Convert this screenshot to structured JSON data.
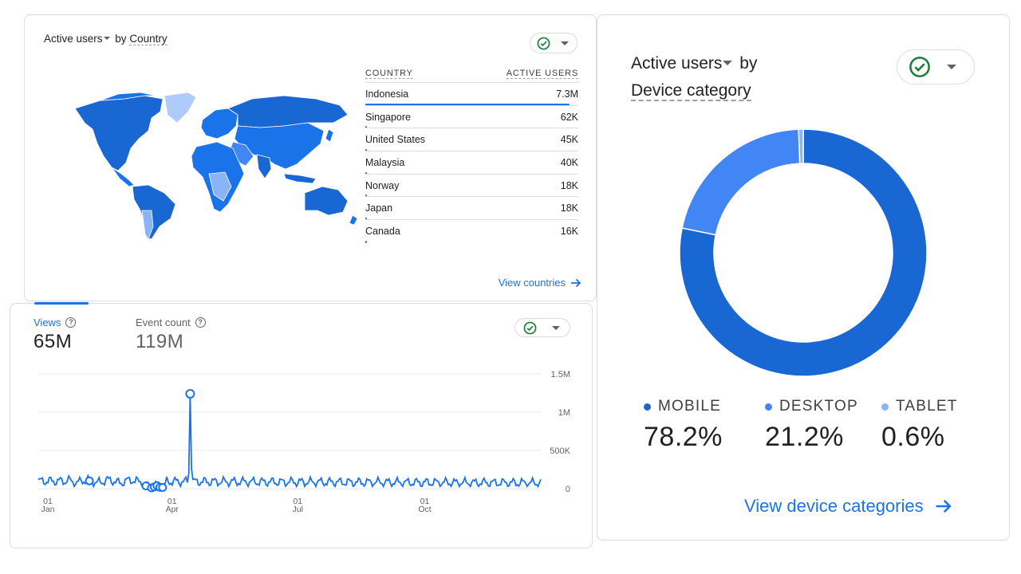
{
  "country_card": {
    "metric_label": "Active users",
    "by_text": "by",
    "dimension_label": "Country",
    "table_headers": [
      "COUNTRY",
      "ACTIVE USERS"
    ],
    "rows": [
      {
        "country": "Indonesia",
        "value": "7.3M",
        "share": 1.0
      },
      {
        "country": "Singapore",
        "value": "62K",
        "share": 0.008
      },
      {
        "country": "United States",
        "value": "45K",
        "share": 0.006
      },
      {
        "country": "Malaysia",
        "value": "40K",
        "share": 0.005
      },
      {
        "country": "Norway",
        "value": "18K",
        "share": 0.002
      },
      {
        "country": "Japan",
        "value": "18K",
        "share": 0.002
      },
      {
        "country": "Canada",
        "value": "16K",
        "share": 0.002
      }
    ],
    "view_link": "View countries",
    "map_colors": {
      "high": "#1a73e8",
      "mid": "#1967d2",
      "low": "#aecbfa",
      "border": "#ffffff"
    }
  },
  "device_card": {
    "metric_label": "Active users",
    "by_text": "by",
    "dimension_label": "Device category",
    "legend": [
      {
        "label": "MOBILE",
        "value": "78.2%",
        "color": "#1967d2"
      },
      {
        "label": "DESKTOP",
        "value": "21.2%",
        "color": "#4285f4"
      },
      {
        "label": "TABLET",
        "value": "0.6%",
        "color": "#8ab4f8"
      }
    ],
    "view_link": "View device categories"
  },
  "views_card": {
    "metrics": [
      {
        "label": "Views",
        "value": "65M",
        "active": true
      },
      {
        "label": "Event count",
        "value": "119M",
        "active": false
      }
    ]
  },
  "icons": {
    "compare": "check-circle-icon",
    "dropdown": "caret-down-icon",
    "link_arrow": "arrow-right-icon",
    "help": "help-circle-icon"
  },
  "colors": {
    "accent": "#1a73e8",
    "check_green": "#188038"
  },
  "chart_data": [
    {
      "type": "pie",
      "variant": "donut",
      "categories": [
        "MOBILE",
        "DESKTOP",
        "TABLET"
      ],
      "values": [
        78.2,
        21.2,
        0.6
      ]
    },
    {
      "type": "line",
      "series": [
        {
          "name": "Views",
          "values_description_note": null
        }
      ],
      "x_tick_labels": [
        [
          "01",
          "Jan"
        ],
        [
          "01",
          "Apr"
        ],
        [
          "01",
          "Jul"
        ],
        [
          "01",
          "Oct"
        ]
      ],
      "y_tick_labels": [
        "1.5M",
        "1M",
        "500K",
        "0"
      ],
      "ylim": [
        0,
        1500000
      ],
      "grid": true,
      "x_days": 365,
      "baseline": 100000,
      "spike": {
        "day": 110,
        "value": 1240000
      },
      "anomaly_days": [
        37,
        78,
        82,
        84,
        86,
        88,
        90
      ]
    }
  ]
}
